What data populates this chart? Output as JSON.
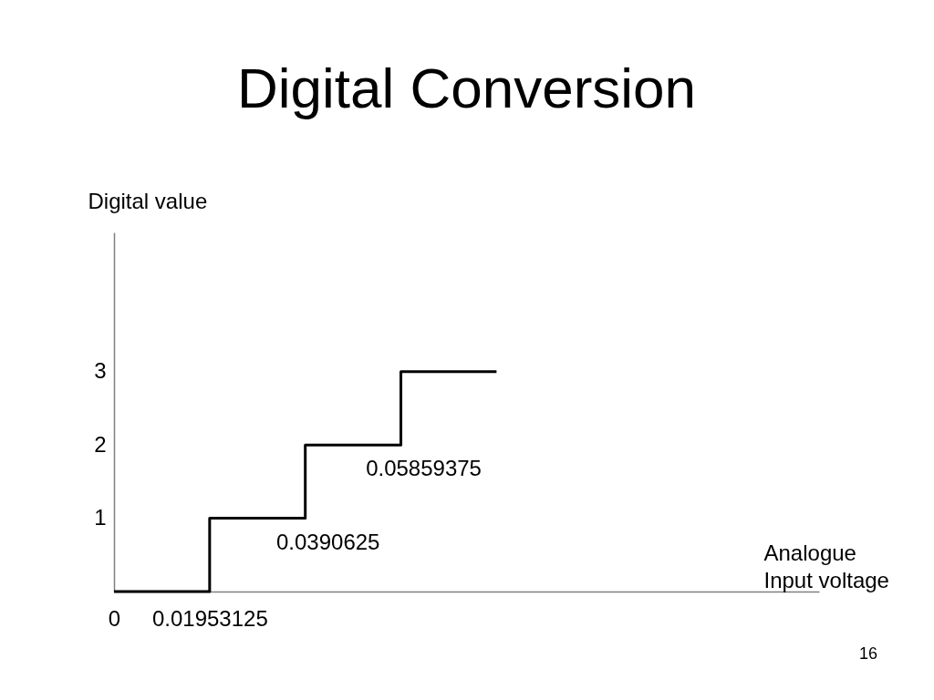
{
  "chart_data": {
    "type": "step",
    "title": "Digital Conversion",
    "xlabel": "Analogue\nInput voltage",
    "ylabel": "Digital value",
    "x": [
      0,
      0.01953125,
      0.0390625,
      0.05859375,
      0.078125
    ],
    "values": [
      0,
      1,
      2,
      3,
      3
    ],
    "color": "#000000",
    "xlim": [
      0,
      0.144
    ],
    "xticks": [
      0,
      0.01953125
    ],
    "ylim": [
      0,
      4.9
    ],
    "yticks": [
      1,
      2,
      3
    ],
    "annotations": [
      {
        "text": "0.0390625",
        "x": 0.0390625,
        "y": 1
      },
      {
        "text": "0.05859375",
        "x": 0.05859375,
        "y": 2
      },
      "16"
    ]
  }
}
